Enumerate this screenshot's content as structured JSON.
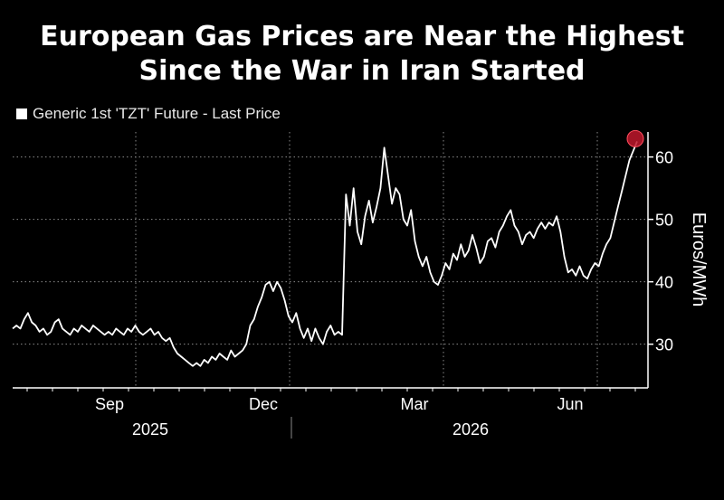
{
  "title_line1": "European Gas Prices are Near the Highest",
  "title_line2": "Since the War in Iran Started",
  "legend_label": "Generic 1st 'TZT' Future - Last Price",
  "colors": {
    "background": "#000000",
    "line": "#ffffff",
    "marker": "#c0182b",
    "grid": "#8a8a8a"
  },
  "chart_data": {
    "type": "line",
    "ylabel": "Euros/MWh",
    "ylim": [
      23,
      64
    ],
    "yticks": [
      30,
      40,
      50,
      60
    ],
    "x_month_ticks": [
      "Sep",
      "Dec",
      "Mar",
      "Jun"
    ],
    "x_year_labels": [
      "2025",
      "2026"
    ],
    "grid": true,
    "legend_position": "top-left",
    "series": [
      {
        "values": [
          32.5,
          33.0,
          32.5,
          34.0,
          35.0,
          33.5,
          33.0,
          32.0,
          32.5,
          31.5,
          32.0,
          33.5,
          34.0,
          32.5,
          32.0,
          31.5,
          32.5,
          32.0,
          33.0,
          32.5,
          32.0,
          33.0,
          32.5,
          32.0,
          31.5,
          32.0,
          31.5,
          32.5,
          32.0,
          31.5,
          32.5,
          32.0,
          33.0,
          32.0,
          31.5,
          32.0,
          32.5,
          31.5,
          32.0,
          31.0,
          30.5,
          31.0,
          29.5,
          28.5,
          28.0,
          27.5,
          27.0,
          26.5,
          27.0,
          26.5,
          27.5,
          27.0,
          28.0,
          27.5,
          28.5,
          28.0,
          27.5,
          29.0,
          28.0,
          28.5,
          29.0,
          30.0,
          33.0,
          34.0,
          36.0,
          37.5,
          39.5,
          40.0,
          38.5,
          40.0,
          39.0,
          37.0,
          34.5,
          33.5,
          35.0,
          32.5,
          31.0,
          32.5,
          30.5,
          32.5,
          31.0,
          30.0,
          32.0,
          33.0,
          31.5,
          32.0,
          31.5,
          54.0,
          49.0,
          55.0,
          48.0,
          46.0,
          50.5,
          53.0,
          49.5,
          52.0,
          55.0,
          61.5,
          57.0,
          52.5,
          55.0,
          54.0,
          50.0,
          49.0,
          51.5,
          46.5,
          44.0,
          42.5,
          44.0,
          41.5,
          40.0,
          39.5,
          41.0,
          43.0,
          42.0,
          44.5,
          43.5,
          46.0,
          44.0,
          45.0,
          47.5,
          45.5,
          43.0,
          44.0,
          46.5,
          47.0,
          45.5,
          48.0,
          49.0,
          50.5,
          51.5,
          49.0,
          48.0,
          46.0,
          47.5,
          48.0,
          47.0,
          48.5,
          49.5,
          48.5,
          49.5,
          49.0,
          50.5,
          48.0,
          44.0,
          41.5,
          42.0,
          41.0,
          42.5,
          41.0,
          40.5,
          42.0,
          43.0,
          42.5,
          44.5,
          46.0,
          47.0,
          49.5,
          52.0,
          54.5,
          57.0,
          59.5,
          61.0,
          62.5
        ]
      }
    ],
    "highlight": {
      "label": "",
      "value": 62.5
    }
  }
}
